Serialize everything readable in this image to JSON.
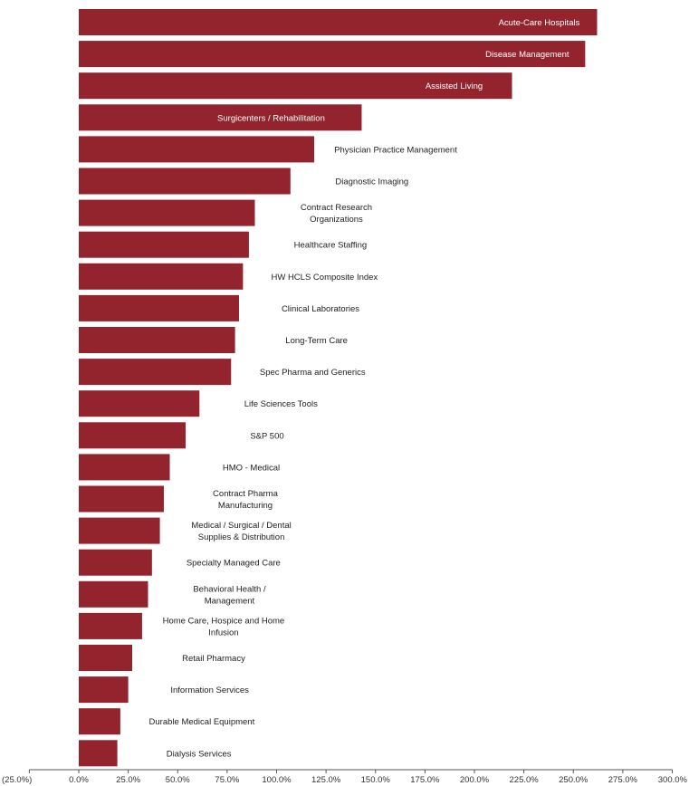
{
  "chart_data": {
    "type": "bar",
    "orientation": "horizontal",
    "bar_color": "#93232d",
    "label_color_inside": "#ffffff",
    "label_color_outside": "#222222",
    "xlim": [
      -25,
      300
    ],
    "x_ticks": [
      -25,
      0,
      25,
      50,
      75,
      100,
      125,
      150,
      175,
      200,
      225,
      250,
      275,
      300
    ],
    "x_tick_labels": [
      "(25.0%)",
      "0.0%",
      "25.0%",
      "50.0%",
      "75.0%",
      "100.0%",
      "125.0%",
      "150.0%",
      "175.0%",
      "200.0%",
      "225.0%",
      "250.0%",
      "275.0%",
      "300.0%"
    ],
    "grid": false,
    "categories": [
      [
        "Acute-Care Hospitals"
      ],
      [
        "Disease Management"
      ],
      [
        "Assisted Living"
      ],
      [
        "Surgicenters / Rehabilitation"
      ],
      [
        "Physician Practice Management"
      ],
      [
        "Diagnostic Imaging"
      ],
      [
        "Contract Research",
        "Organizations"
      ],
      [
        "Healthcare Staffing"
      ],
      [
        "HW HCLS Composite Index"
      ],
      [
        "Clinical Laboratories"
      ],
      [
        "Long-Term Care"
      ],
      [
        "Spec Pharma and Generics"
      ],
      [
        "Life Sciences Tools"
      ],
      [
        "S&P 500"
      ],
      [
        "HMO - Medical"
      ],
      [
        "Contract Pharma",
        "Manufacturing"
      ],
      [
        "Medical / Surgical / Dental",
        "Supplies & Distribution"
      ],
      [
        "Specialty Managed Care"
      ],
      [
        "Behavioral Health /",
        "Management"
      ],
      [
        "Home Care, Hospice and Home",
        "Infusion"
      ],
      [
        "Retail Pharmacy"
      ],
      [
        "Information Services"
      ],
      [
        "Durable Medical Equipment"
      ],
      [
        "Dialysis Services"
      ]
    ],
    "values": [
      262,
      256,
      219,
      143,
      119,
      107,
      89,
      86,
      83,
      81,
      79,
      77,
      61,
      54,
      46,
      43,
      41,
      37,
      35,
      32,
      27,
      25,
      21,
      19.5
    ],
    "label_inside": [
      true,
      true,
      true,
      true,
      false,
      false,
      false,
      false,
      false,
      false,
      false,
      false,
      false,
      false,
      false,
      false,
      false,
      false,
      false,
      false,
      false,
      false,
      false,
      false
    ]
  }
}
